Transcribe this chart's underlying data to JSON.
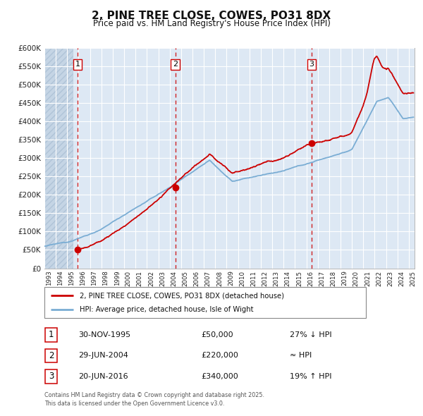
{
  "title": "2, PINE TREE CLOSE, COWES, PO31 8DX",
  "subtitle": "Price paid vs. HM Land Registry's House Price Index (HPI)",
  "legend_line1": "2, PINE TREE CLOSE, COWES, PO31 8DX (detached house)",
  "legend_line2": "HPI: Average price, detached house, Isle of Wight",
  "sale1_date": "30-NOV-1995",
  "sale1_price": "£50,000",
  "sale1_rel": "27% ↓ HPI",
  "sale1_year": 1995.92,
  "sale1_value": 50000,
  "sale2_date": "29-JUN-2004",
  "sale2_price": "£220,000",
  "sale2_rel": "≈ HPI",
  "sale2_year": 2004.49,
  "sale2_value": 220000,
  "sale3_date": "20-JUN-2016",
  "sale3_price": "£340,000",
  "sale3_rel": "19% ↑ HPI",
  "sale3_year": 2016.47,
  "sale3_value": 340000,
  "footer": "Contains HM Land Registry data © Crown copyright and database right 2025.\nThis data is licensed under the Open Government Licence v3.0.",
  "ylim": [
    0,
    600000
  ],
  "xlim_start": 1993.0,
  "xlim_end": 2025.5,
  "property_color": "#cc0000",
  "hpi_color": "#7aadd4",
  "vline_color": "#cc0000",
  "background_plot": "#dde8f4",
  "background_hatch": "#c5d5e5",
  "grid_color": "#ffffff",
  "box_edge_color": "#cc0000",
  "box_text_color": "#000000"
}
